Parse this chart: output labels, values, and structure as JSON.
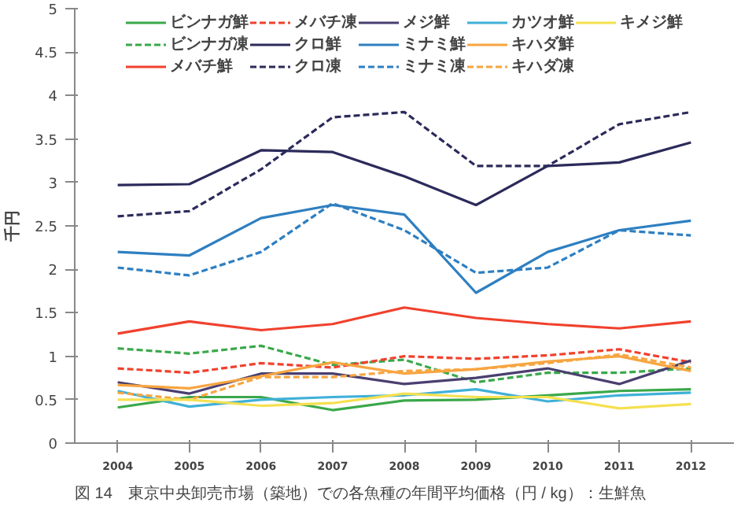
{
  "chart_data": {
    "type": "line",
    "ylabel": "千円",
    "categories": [
      "2004",
      "2005",
      "2006",
      "2007",
      "2008",
      "2009",
      "2010",
      "2011",
      "2012"
    ],
    "ylim": [
      0,
      5
    ],
    "yticks": [
      0,
      0.5,
      1,
      1.5,
      2,
      2.5,
      3,
      3.5,
      4,
      4.5,
      5
    ],
    "grid": false,
    "legend": "top",
    "marker": "none",
    "series": [
      {
        "name": "ビンナガ鮮",
        "color": "#3aa84a",
        "line_style": "solid",
        "values": [
          0.41,
          0.53,
          0.53,
          0.38,
          0.49,
          0.5,
          0.55,
          0.6,
          0.62
        ]
      },
      {
        "name": "ビンナガ凍",
        "color": "#3aa84a",
        "line_style": "dashed",
        "values": [
          1.09,
          1.03,
          1.12,
          0.9,
          0.96,
          0.7,
          0.81,
          0.81,
          0.86
        ]
      },
      {
        "name": "メバチ鮮",
        "color": "#f0412d",
        "line_style": "solid",
        "values": [
          1.26,
          1.4,
          1.3,
          1.37,
          1.56,
          1.44,
          1.37,
          1.32,
          1.4
        ]
      },
      {
        "name": "メバチ凍",
        "color": "#f0412d",
        "line_style": "dashed",
        "values": [
          0.86,
          0.81,
          0.92,
          0.87,
          1.0,
          0.97,
          1.01,
          1.08,
          0.93
        ]
      },
      {
        "name": "クロ鮮",
        "color": "#2b2a5a",
        "line_style": "solid",
        "values": [
          2.97,
          2.98,
          3.37,
          3.35,
          3.07,
          2.74,
          3.19,
          3.23,
          3.46
        ]
      },
      {
        "name": "クロ凍",
        "color": "#2b2a5a",
        "line_style": "dashed",
        "values": [
          2.61,
          2.67,
          3.15,
          3.75,
          3.81,
          3.19,
          3.19,
          3.67,
          3.81
        ]
      },
      {
        "name": "メジ鮮",
        "color": "#4a3f70",
        "line_style": "solid",
        "values": [
          0.7,
          0.57,
          0.8,
          0.8,
          0.68,
          0.75,
          0.86,
          0.68,
          0.95
        ]
      },
      {
        "name": "ミナミ鮮",
        "color": "#2e7fc1",
        "line_style": "solid",
        "values": [
          2.2,
          2.16,
          2.59,
          2.74,
          2.63,
          1.73,
          2.2,
          2.45,
          2.56
        ]
      },
      {
        "name": "ミナミ凍",
        "color": "#2e7fc1",
        "line_style": "dashed",
        "values": [
          2.02,
          1.93,
          2.2,
          2.76,
          2.45,
          1.96,
          2.02,
          2.45,
          2.39
        ]
      },
      {
        "name": "カツオ鮮",
        "color": "#3fb0d8",
        "line_style": "solid",
        "values": [
          0.6,
          0.42,
          0.5,
          0.53,
          0.55,
          0.62,
          0.48,
          0.55,
          0.58
        ]
      },
      {
        "name": "キハダ鮮",
        "color": "#f7a540",
        "line_style": "solid",
        "values": [
          0.67,
          0.63,
          0.77,
          0.93,
          0.8,
          0.85,
          0.94,
          1.0,
          0.83
        ]
      },
      {
        "name": "キハダ凍",
        "color": "#f7a540",
        "line_style": "dashed",
        "values": [
          0.58,
          0.5,
          0.76,
          0.76,
          0.83,
          0.85,
          0.92,
          1.02,
          0.87
        ]
      },
      {
        "name": "キメジ鮮",
        "color": "#f5e050",
        "line_style": "solid",
        "values": [
          0.5,
          0.5,
          0.43,
          0.46,
          0.57,
          0.53,
          0.53,
          0.4,
          0.45
        ]
      }
    ],
    "annotations": [
      "図 14　東京中央卸売市場（築地）での各魚種の年間平均価格（円 / kg）：生鮮魚"
    ]
  }
}
